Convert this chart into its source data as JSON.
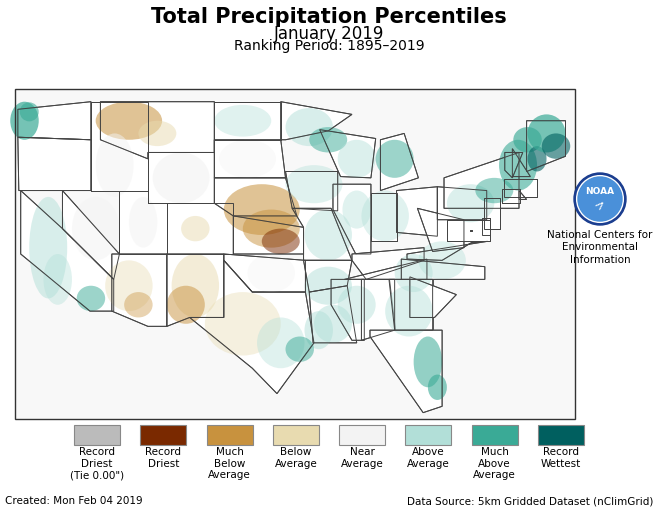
{
  "title_line1": "Total Precipitation Percentiles",
  "title_line2": "January 2019",
  "title_line3": "Ranking Period: 1895–2019",
  "legend_items": [
    {
      "label": "Record\nDriest\n(Tie 0.00\")",
      "color": "#bbbbbb"
    },
    {
      "label": "Record\nDriest",
      "color": "#7a2900"
    },
    {
      "label": "Much\nBelow\nAverage",
      "color": "#c8923e"
    },
    {
      "label": "Below\nAverage",
      "color": "#e8dbb0"
    },
    {
      "label": "Near\nAverage",
      "color": "#f3f3f3"
    },
    {
      "label": "Above\nAverage",
      "color": "#b2dfd8"
    },
    {
      "label": "Much\nAbove\nAverage",
      "color": "#3aaa96"
    },
    {
      "label": "Record\nWettest",
      "color": "#005f5f"
    }
  ],
  "footer_left": "Created: Mon Feb 04 2019",
  "footer_right": "Data Source: 5km Gridded Dataset (nClimGrid)",
  "noaa_text": "National Centers for\nEnvironmental\nInformation",
  "noaa_circle_color": "#1a3d8f",
  "background_color": "#ffffff",
  "title_fontsize": 15,
  "subtitle_fontsize": 12,
  "subsubtitle_fontsize": 10,
  "legend_fontsize": 7.5,
  "footer_fontsize": 7.5
}
